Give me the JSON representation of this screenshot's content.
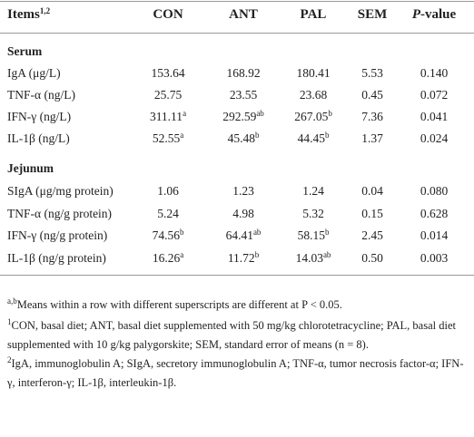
{
  "table": {
    "header": [
      {
        "text": "Items",
        "sup": "1,2"
      },
      "CON",
      "ANT",
      "PAL",
      "SEM",
      {
        "italic": "P",
        "text": "-value"
      }
    ],
    "sections": [
      {
        "title": "Serum",
        "rows": [
          [
            "IgA (μg/L)",
            "153.64",
            "168.92",
            "180.41",
            "5.53",
            "0.140"
          ],
          [
            "TNF-α (ng/L)",
            "25.75",
            "23.55",
            "23.68",
            "0.45",
            "0.072"
          ],
          [
            "IFN-γ (ng/L)",
            {
              "text": "311.11",
              "sup": "a"
            },
            {
              "text": "292.59",
              "sup": "ab"
            },
            {
              "text": "267.05",
              "sup": "b"
            },
            "7.36",
            "0.041"
          ],
          [
            "IL-1β (ng/L)",
            {
              "text": "52.55",
              "sup": "a"
            },
            {
              "text": "45.48",
              "sup": "b"
            },
            {
              "text": "44.45",
              "sup": "b"
            },
            "1.37",
            "0.024"
          ]
        ]
      },
      {
        "title": "Jejunum",
        "rows": [
          [
            "SIgA (μg/mg protein)",
            "1.06",
            "1.23",
            "1.24",
            "0.04",
            "0.080"
          ],
          [
            "TNF-α (ng/g protein)",
            "5.24",
            "4.98",
            "5.32",
            "0.15",
            "0.628"
          ],
          [
            "IFN-γ (ng/g protein)",
            {
              "text": "74.56",
              "sup": "b"
            },
            {
              "text": "64.41",
              "sup": "ab"
            },
            {
              "text": "58.15",
              "sup": "b"
            },
            "2.45",
            "0.014"
          ],
          [
            "IL-1β (ng/g protein)",
            {
              "text": "16.26",
              "sup": "a"
            },
            {
              "text": "11.72",
              "sup": "b"
            },
            {
              "text": "14.03",
              "sup": "ab"
            },
            "0.50",
            "0.003"
          ]
        ]
      }
    ]
  },
  "footnotes": [
    {
      "sup": "a,b",
      "text": "Means within a row with different superscripts are different at P < 0.05."
    },
    {
      "sup": "1",
      "text": "CON, basal diet; ANT, basal diet supplemented with 50 mg/kg chlorotetracycline; PAL, basal diet supplemented with 10 g/kg palygorskite; SEM, standard error of means (n = 8)."
    },
    {
      "sup": "2",
      "text": "IgA, immunoglobulin A; SIgA, secretory immunoglobulin A; TNF-α, tumor necrosis factor-α; IFN-γ, interferon-γ; IL-1β, interleukin-1β."
    }
  ]
}
